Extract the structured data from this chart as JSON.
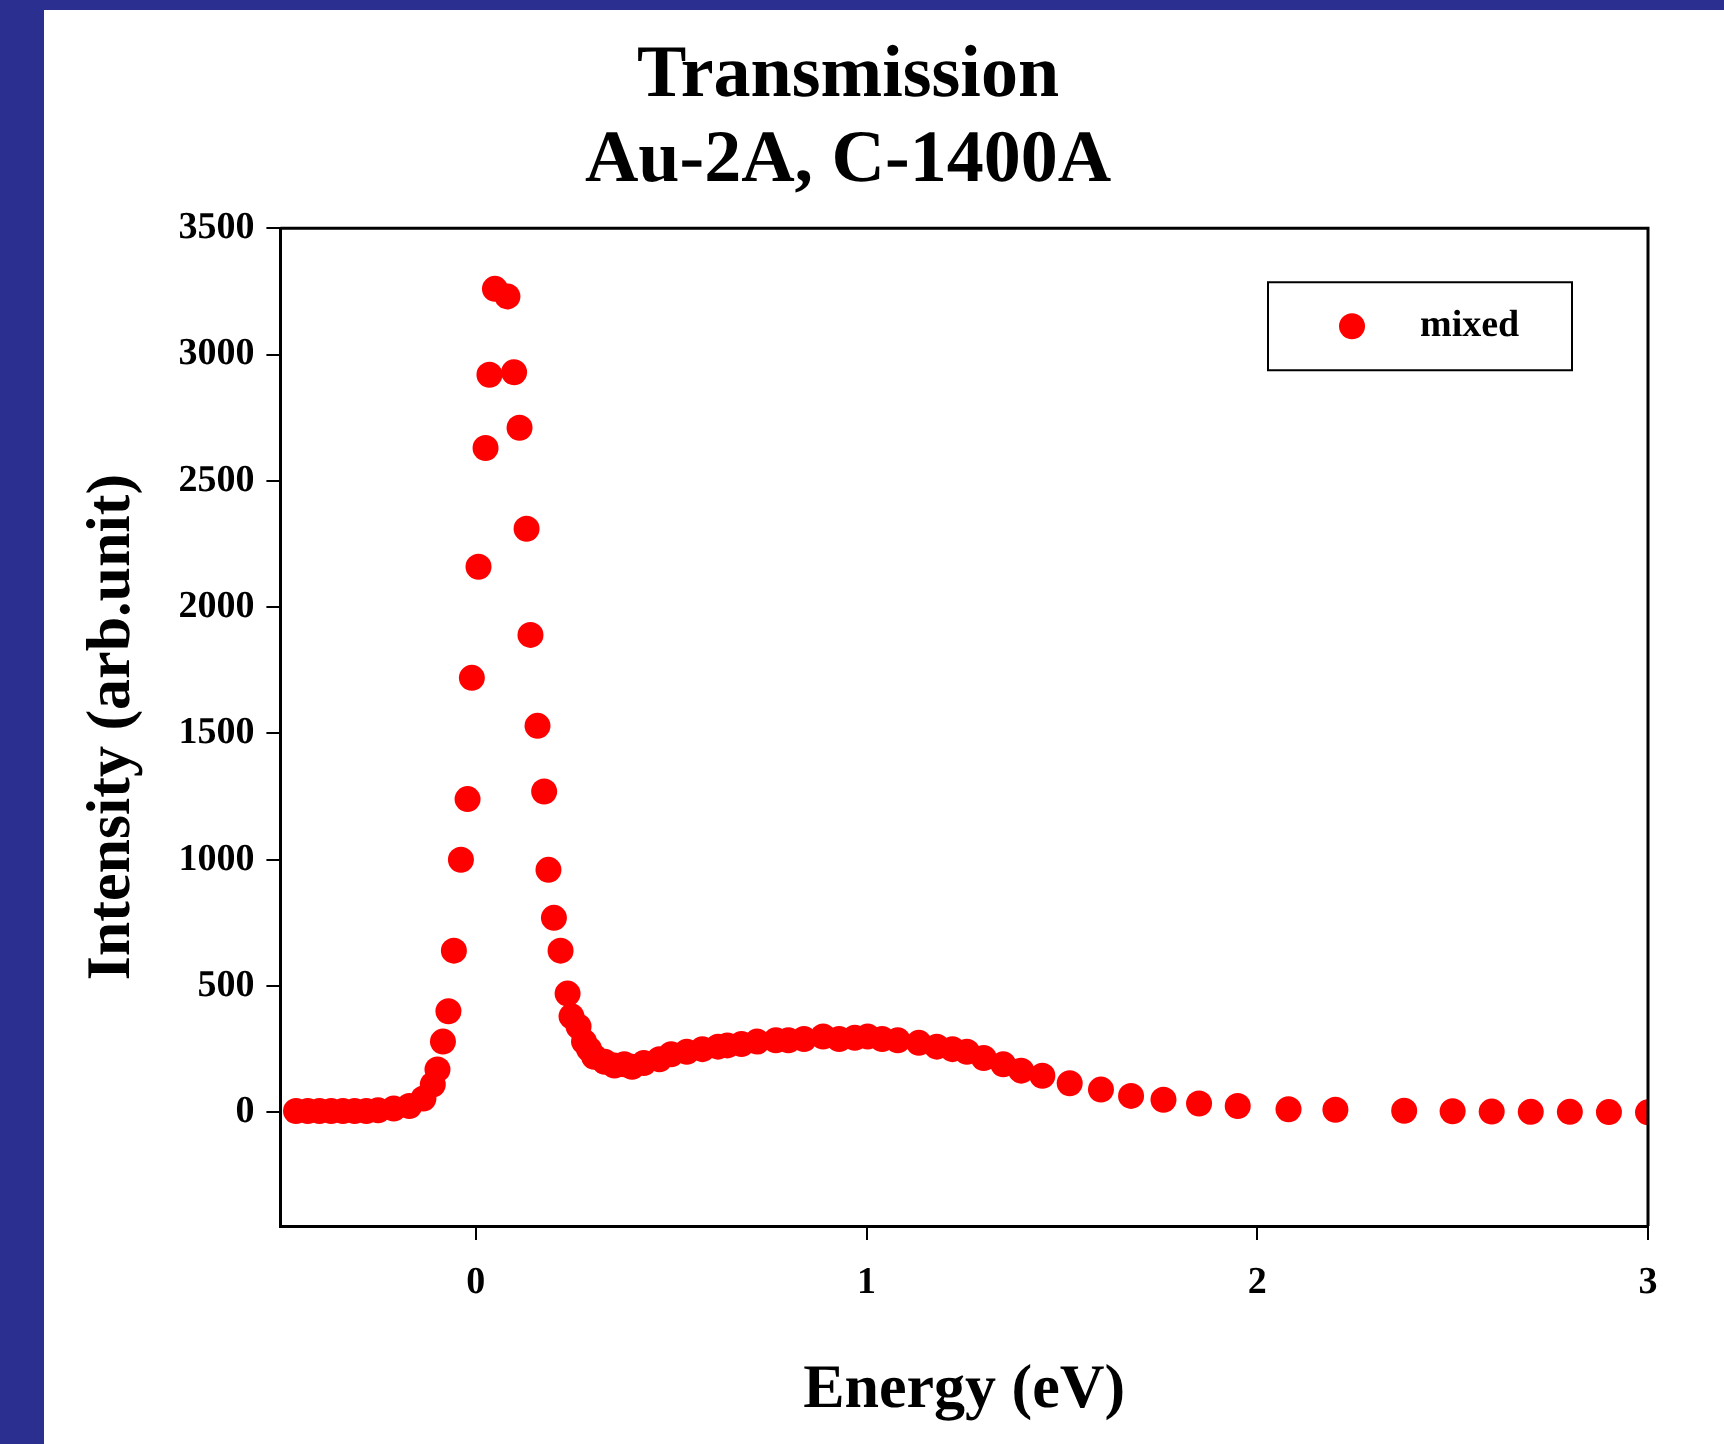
{
  "chart_data": {
    "type": "scatter",
    "title": "Transmission\nAu-2A, C-1400A",
    "xlabel": "Energy (eV)",
    "ylabel": "Intensity (arb.unit)",
    "xlim": [
      -0.5,
      3
    ],
    "xticks": [
      0,
      1,
      2,
      3
    ],
    "ylim": [
      -450,
      3500
    ],
    "yticks": [
      0,
      500,
      1000,
      1500,
      2000,
      2500,
      3000,
      3500
    ],
    "grid": false,
    "legend": "top right",
    "marker": "circle",
    "series": [
      {
        "name": "mixed",
        "color": "#ff0000",
        "x": [
          -0.46,
          -0.43,
          -0.4,
          -0.37,
          -0.34,
          -0.31,
          -0.28,
          -0.25,
          -0.21,
          -0.17,
          -0.134,
          -0.11,
          -0.098,
          -0.084,
          -0.07,
          -0.056,
          -0.038,
          -0.021,
          -0.01,
          0.007,
          0.025,
          0.035,
          0.049,
          0.081,
          0.098,
          0.112,
          0.13,
          0.14,
          0.158,
          0.175,
          0.186,
          0.2,
          0.217,
          0.235,
          0.245,
          0.263,
          0.277,
          0.29,
          0.303,
          0.33,
          0.355,
          0.38,
          0.4,
          0.43,
          0.47,
          0.5,
          0.54,
          0.58,
          0.62,
          0.644,
          0.68,
          0.72,
          0.768,
          0.8,
          0.84,
          0.889,
          0.93,
          0.97,
          1.003,
          1.04,
          1.08,
          1.134,
          1.18,
          1.22,
          1.257,
          1.3,
          1.35,
          1.396,
          1.45,
          1.52,
          1.6,
          1.677,
          1.76,
          1.851,
          1.95,
          2.08,
          2.2,
          2.376,
          2.5,
          2.6,
          2.7,
          2.8,
          2.9,
          3.0
        ],
        "values": [
          5,
          5,
          5,
          5,
          5,
          5,
          5,
          8,
          15,
          25,
          55,
          110,
          170,
          280,
          400,
          640,
          1000,
          1240,
          1720,
          2160,
          2630,
          2920,
          3260,
          3230,
          2930,
          2710,
          2310,
          1890,
          1530,
          1270,
          960,
          770,
          640,
          470,
          380,
          340,
          280,
          250,
          220,
          200,
          185,
          190,
          180,
          195,
          210,
          230,
          240,
          250,
          260,
          265,
          270,
          280,
          285,
          285,
          290,
          300,
          290,
          295,
          300,
          290,
          285,
          275,
          260,
          250,
          240,
          215,
          190,
          165,
          145,
          115,
          90,
          65,
          50,
          35,
          25,
          12,
          10,
          6,
          4,
          3,
          2,
          2,
          1,
          0
        ]
      }
    ]
  }
}
